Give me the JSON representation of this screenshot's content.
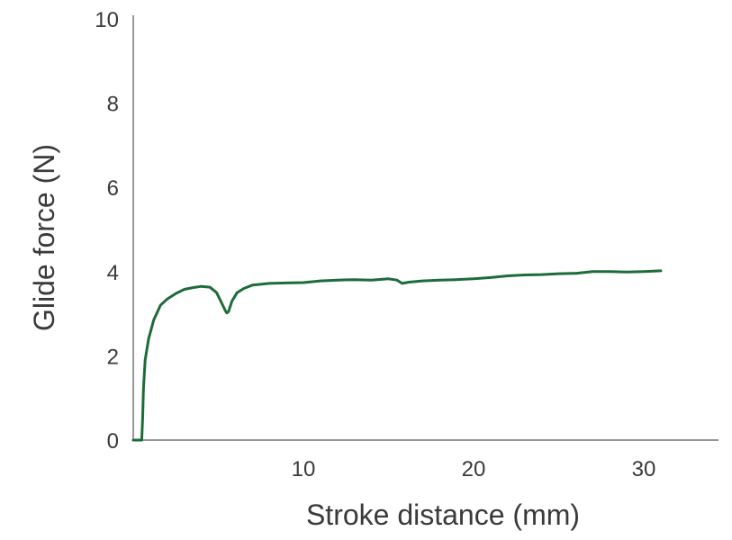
{
  "chart_data": {
    "type": "line",
    "xlabel": "Stroke distance (mm)",
    "ylabel": "Glide force (N)",
    "xlim": [
      0,
      35
    ],
    "ylim": [
      0,
      10
    ],
    "x_ticks": [
      10,
      20,
      30
    ],
    "y_ticks": [
      0,
      2,
      4,
      6,
      8,
      10
    ],
    "grid": false,
    "legend": "none",
    "colors": {
      "series": "#1e6b3a",
      "axis": "#555555",
      "text": "#3a3a3a"
    },
    "series": [
      {
        "x": [
          0,
          0.5,
          0.55,
          0.6,
          0.7,
          0.9,
          1.2,
          1.6,
          2.0,
          2.5,
          3.0,
          3.5,
          4.0,
          4.5,
          4.9,
          5.2,
          5.4,
          5.5,
          5.6,
          5.8,
          6.1,
          6.5,
          7.0,
          8.0,
          9.0,
          10.0,
          11.0,
          12.0,
          13.0,
          14.0,
          15.0,
          15.5,
          15.8,
          16.2,
          17.0,
          18.0,
          19.0,
          20.0,
          21.0,
          22.0,
          23.0,
          24.0,
          25.0,
          26.0,
          26.5,
          27.0,
          28.0,
          29.0,
          30.0,
          31.0
        ],
        "y": [
          0.0,
          0.0,
          0.5,
          1.2,
          1.9,
          2.4,
          2.85,
          3.2,
          3.35,
          3.48,
          3.58,
          3.62,
          3.65,
          3.63,
          3.5,
          3.25,
          3.08,
          3.02,
          3.05,
          3.3,
          3.5,
          3.6,
          3.68,
          3.72,
          3.73,
          3.74,
          3.78,
          3.8,
          3.81,
          3.8,
          3.83,
          3.8,
          3.72,
          3.75,
          3.78,
          3.8,
          3.81,
          3.83,
          3.86,
          3.9,
          3.92,
          3.93,
          3.95,
          3.96,
          3.98,
          4.0,
          4.0,
          3.99,
          4.0,
          4.02
        ]
      }
    ]
  }
}
